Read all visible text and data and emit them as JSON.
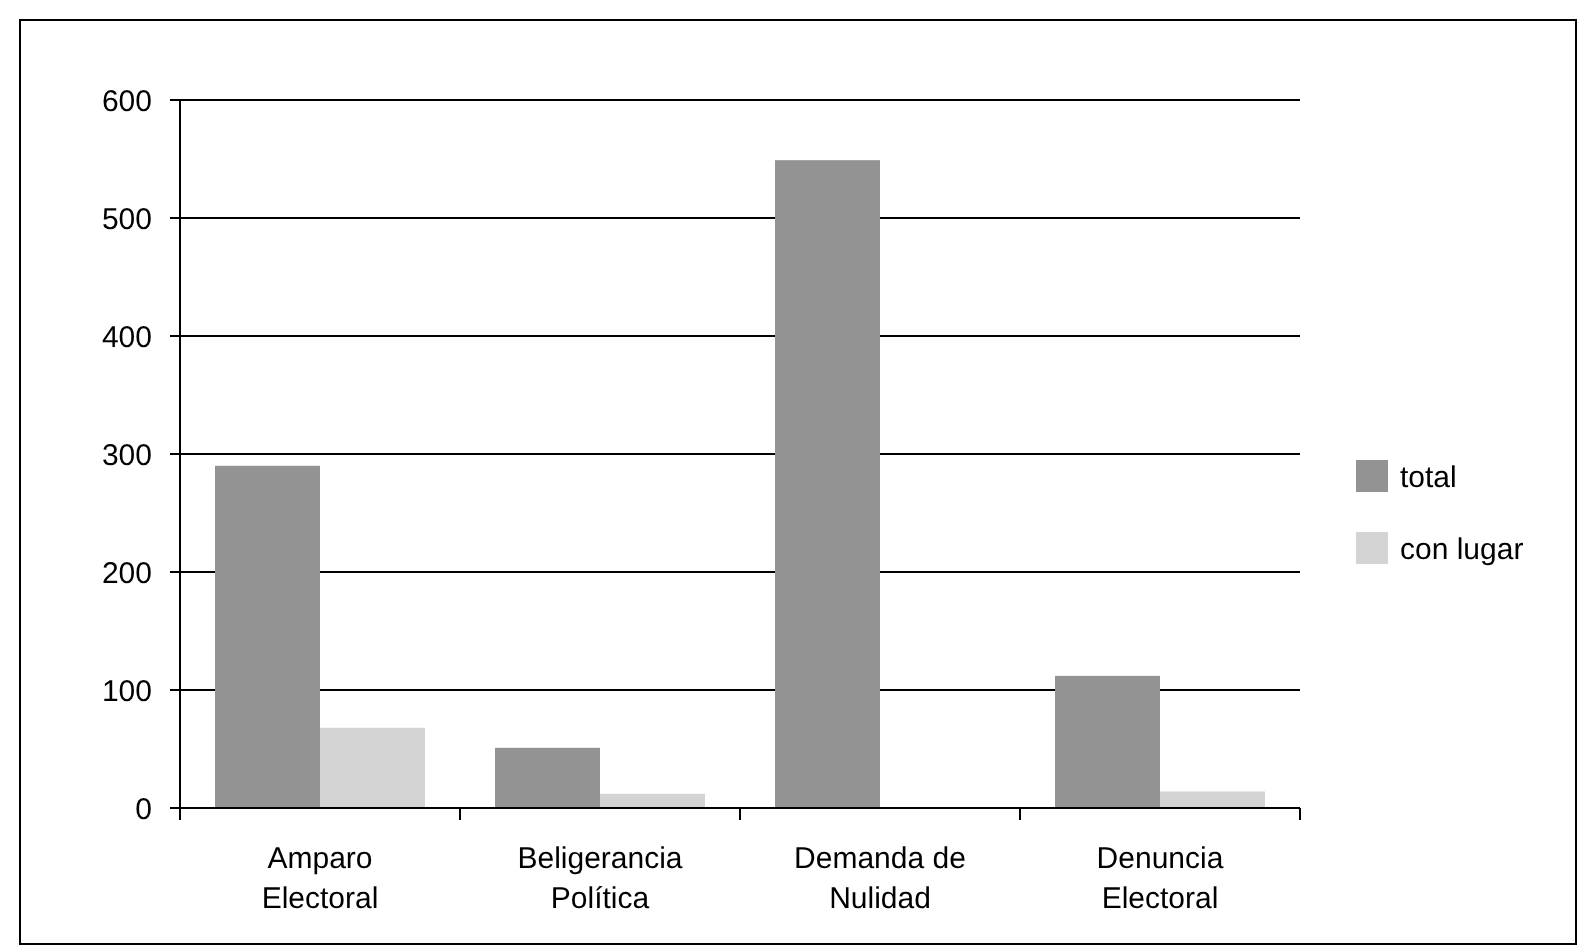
{
  "chart_data": {
    "type": "bar",
    "categories": [
      "Amparo Electoral",
      "Beligerancia Política",
      "Demanda de Nulidad",
      "Denuncia Electoral"
    ],
    "series": [
      {
        "name": "total",
        "color": "#939393",
        "values": [
          290,
          51,
          549,
          112
        ]
      },
      {
        "name": "con lugar",
        "color": "#d4d4d4",
        "values": [
          68,
          12,
          0,
          14
        ]
      }
    ],
    "ylim": [
      0,
      600
    ],
    "yticks": [
      0,
      100,
      200,
      300,
      400,
      500,
      600
    ],
    "grid": "y",
    "legend": "right"
  }
}
